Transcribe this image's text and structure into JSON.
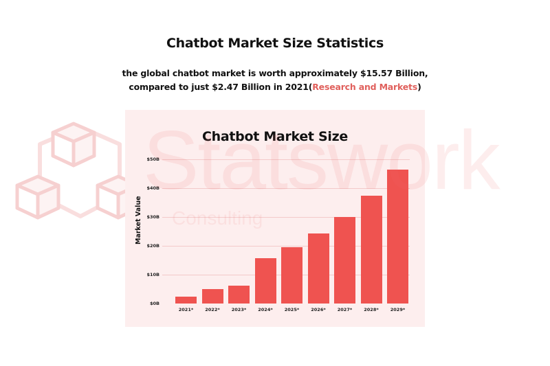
{
  "header": {
    "title": "Chatbot Market Size Statistics",
    "subtitle_line1": "the global chatbot market is worth approximately $15.57 Billion,",
    "subtitle_line2": "compared to just $2.47 Billion in 2021(",
    "source_link": "Research and Markets",
    "subtitle_close": ")"
  },
  "watermark": {
    "text": "Statswork",
    "subtext": "Consulting",
    "logo_icon": "cubes-network-icon"
  },
  "colors": {
    "bar": "#ef5350",
    "panel_bg": "#fdeeee",
    "grid": "#f3c9c9",
    "link": "#e0605c"
  },
  "chart_data": {
    "type": "bar",
    "title": "Chatbot Market Size",
    "xlabel": "",
    "ylabel": "Market Value",
    "categories": [
      "2021*",
      "2022*",
      "2023*",
      "2024*",
      "2025*",
      "2026*",
      "2027*",
      "2028*",
      "2029*"
    ],
    "values": [
      2.5,
      5.0,
      6.3,
      15.6,
      19.5,
      24.3,
      30.1,
      37.4,
      46.4
    ],
    "unit": "Billion USD",
    "yticks": [
      "$0B",
      "$10B",
      "$20B",
      "$30B",
      "$40B",
      "$50B"
    ],
    "ylim": [
      0,
      50
    ],
    "grid": true,
    "legend": null
  }
}
